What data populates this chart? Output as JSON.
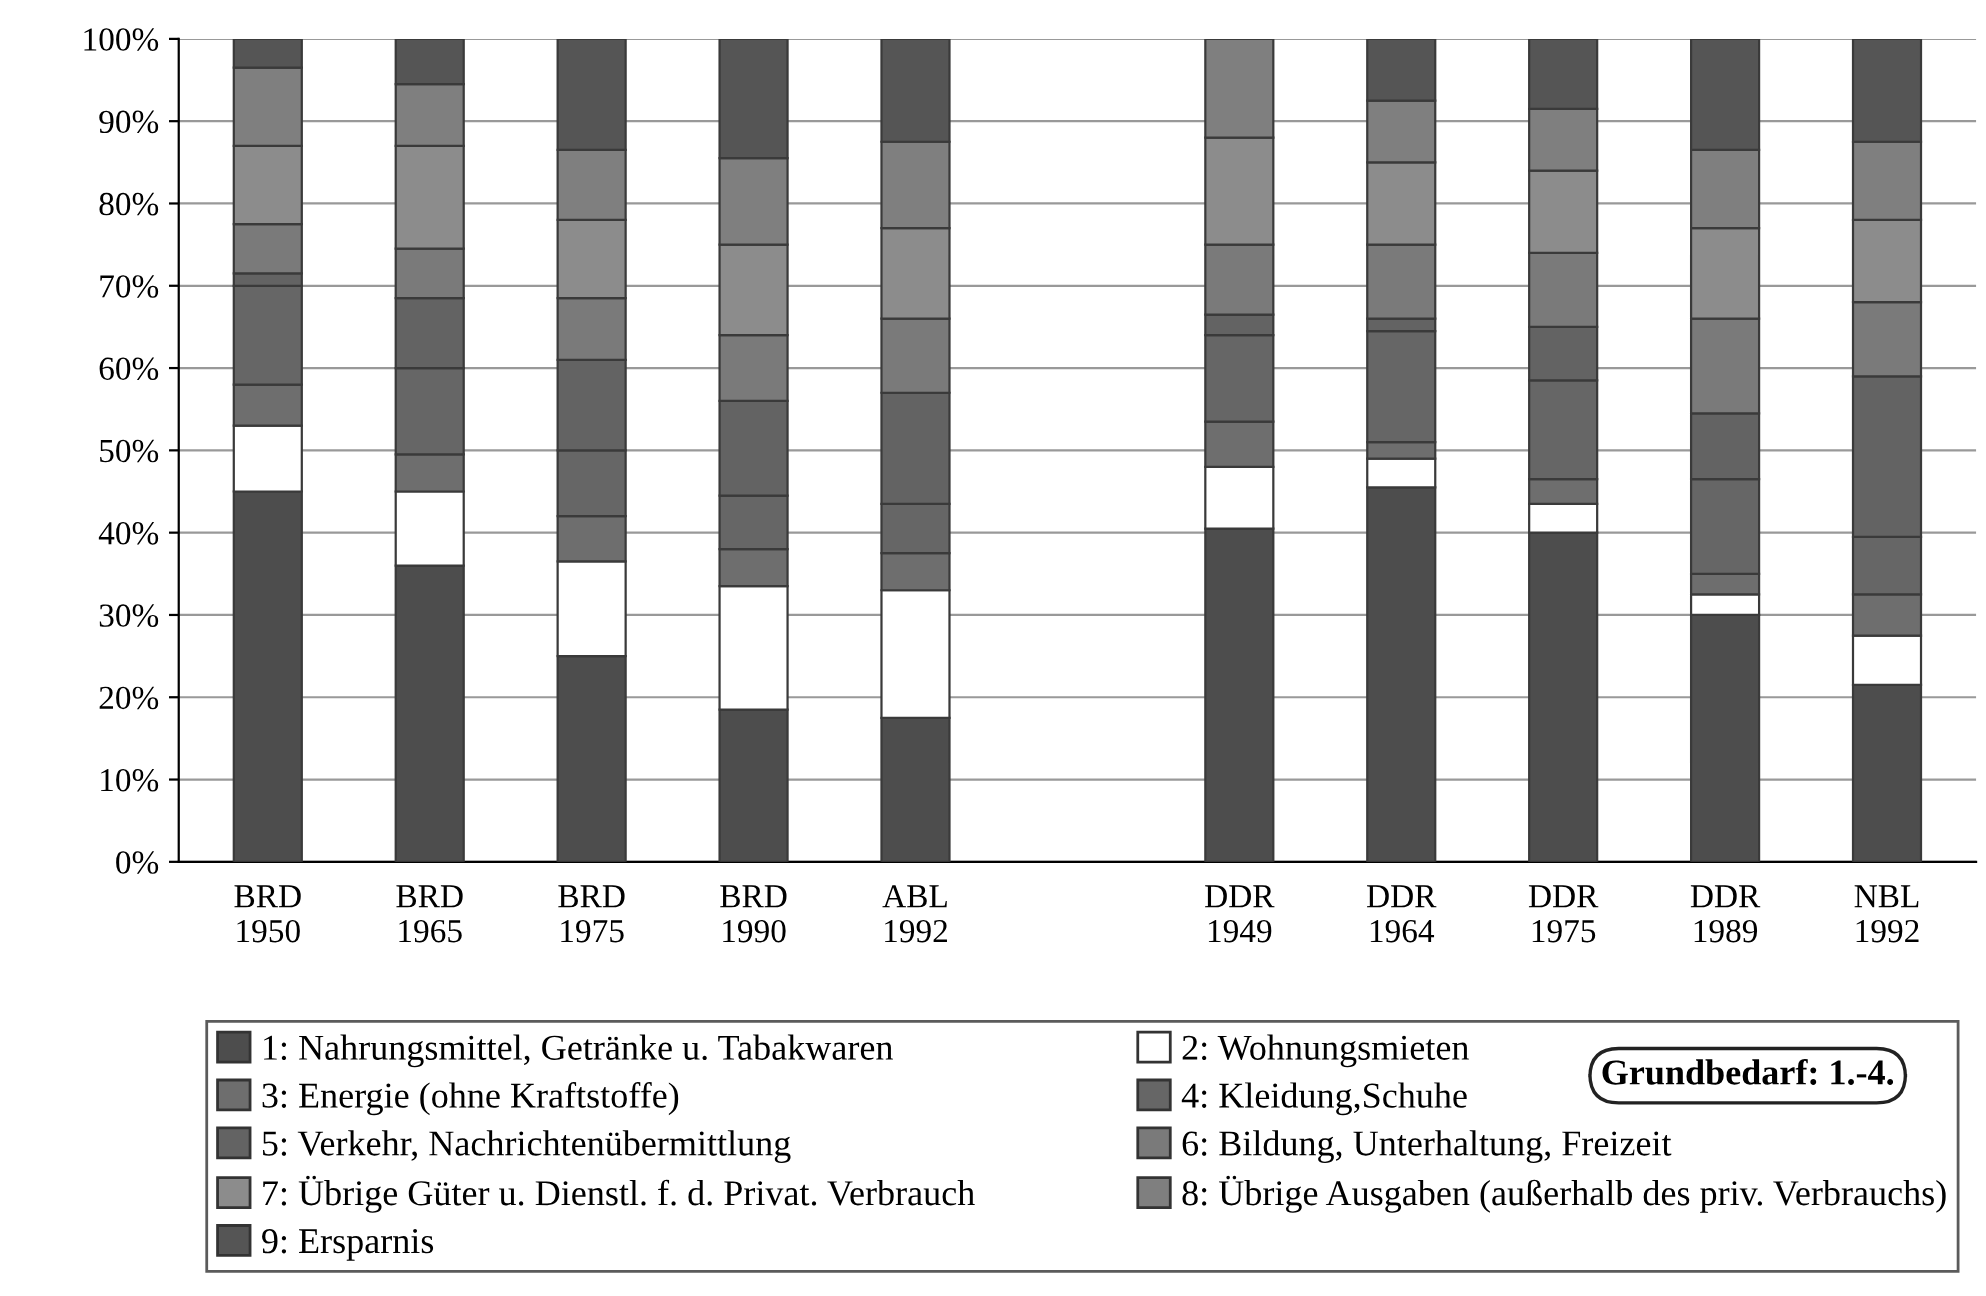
{
  "chart_data": {
    "type": "bar",
    "stacked": true,
    "categories": [
      "BRD\n1950",
      "BRD\n1965",
      "BRD\n1975",
      "BRD\n1990",
      "ABL\n1992",
      null,
      "DDR\n1949",
      "DDR\n1964",
      "DDR\n1975",
      "DDR\n1989",
      "NBL\n1992"
    ],
    "series": [
      {
        "name": "1: Nahrungsmittel, Getränke u. Tabakwaren",
        "color": "#4d4d4d",
        "values": [
          45,
          36,
          25,
          18.5,
          17.5,
          null,
          40.5,
          45.5,
          40,
          30,
          21.5
        ]
      },
      {
        "name": "2: Wohnungsmieten",
        "color": "#ffffff",
        "values": [
          8,
          9,
          11.5,
          15,
          15.5,
          null,
          7.5,
          3.5,
          3.5,
          2.5,
          6
        ]
      },
      {
        "name": "3: Energie (ohne Kraftstoffe)",
        "color": "#6e6e6e",
        "values": [
          5,
          4.5,
          5.5,
          4.5,
          4.5,
          null,
          5.5,
          2,
          3,
          2.5,
          5
        ]
      },
      {
        "name": "4: Kleidung,Schuhe",
        "color": "#666666",
        "values": [
          12,
          10.5,
          8,
          6.5,
          6,
          null,
          10.5,
          13.5,
          12,
          11.5,
          7
        ]
      },
      {
        "name": "5: Verkehr, Nachrichtenübermittlung",
        "color": "#636363",
        "values": [
          1.5,
          8.5,
          11,
          11.5,
          13.5,
          null,
          2.5,
          1.5,
          6.5,
          8,
          19.5
        ]
      },
      {
        "name": "6: Bildung, Unterhaltung, Freizeit",
        "color": "#7a7a7a",
        "values": [
          6,
          6,
          7.5,
          8,
          9,
          null,
          8.5,
          9,
          9,
          11.5,
          9
        ]
      },
      {
        "name": "7: Übrige Güter u. Dienstl. f. d. Privat. Verbrauch",
        "color": "#8c8c8c",
        "values": [
          9.5,
          12.5,
          9.5,
          11,
          11,
          null,
          13,
          10,
          10,
          11,
          10
        ]
      },
      {
        "name": "8: Übrige Ausgaben (außerhalb des priv. Verbrauchs)",
        "color": "#7f7f7f",
        "values": [
          9.5,
          7.5,
          8.5,
          10.5,
          10.5,
          null,
          12,
          7.5,
          7.5,
          9.5,
          9.5
        ]
      },
      {
        "name": "9: Ersparnis",
        "color": "#555555",
        "values": [
          3.5,
          5.5,
          13.5,
          14.5,
          12.5,
          null,
          0,
          7.5,
          8.5,
          13.5,
          12.5
        ]
      }
    ],
    "ylim": [
      0,
      100
    ],
    "yticks": [
      {
        "value": 0,
        "label": "0%"
      },
      {
        "value": 10,
        "label": "10%"
      },
      {
        "value": 20,
        "label": "20%"
      },
      {
        "value": 30,
        "label": "30%"
      },
      {
        "value": 40,
        "label": "40%"
      },
      {
        "value": 50,
        "label": "50%"
      },
      {
        "value": 60,
        "label": "60%"
      },
      {
        "value": 70,
        "label": "70%"
      },
      {
        "value": 80,
        "label": "80%"
      },
      {
        "value": 90,
        "label": "90%"
      },
      {
        "value": 100,
        "label": "100%"
      }
    ],
    "grid": "y",
    "legend": "bottom",
    "annotations": [
      "Grundbedarf: 1.-4."
    ]
  }
}
